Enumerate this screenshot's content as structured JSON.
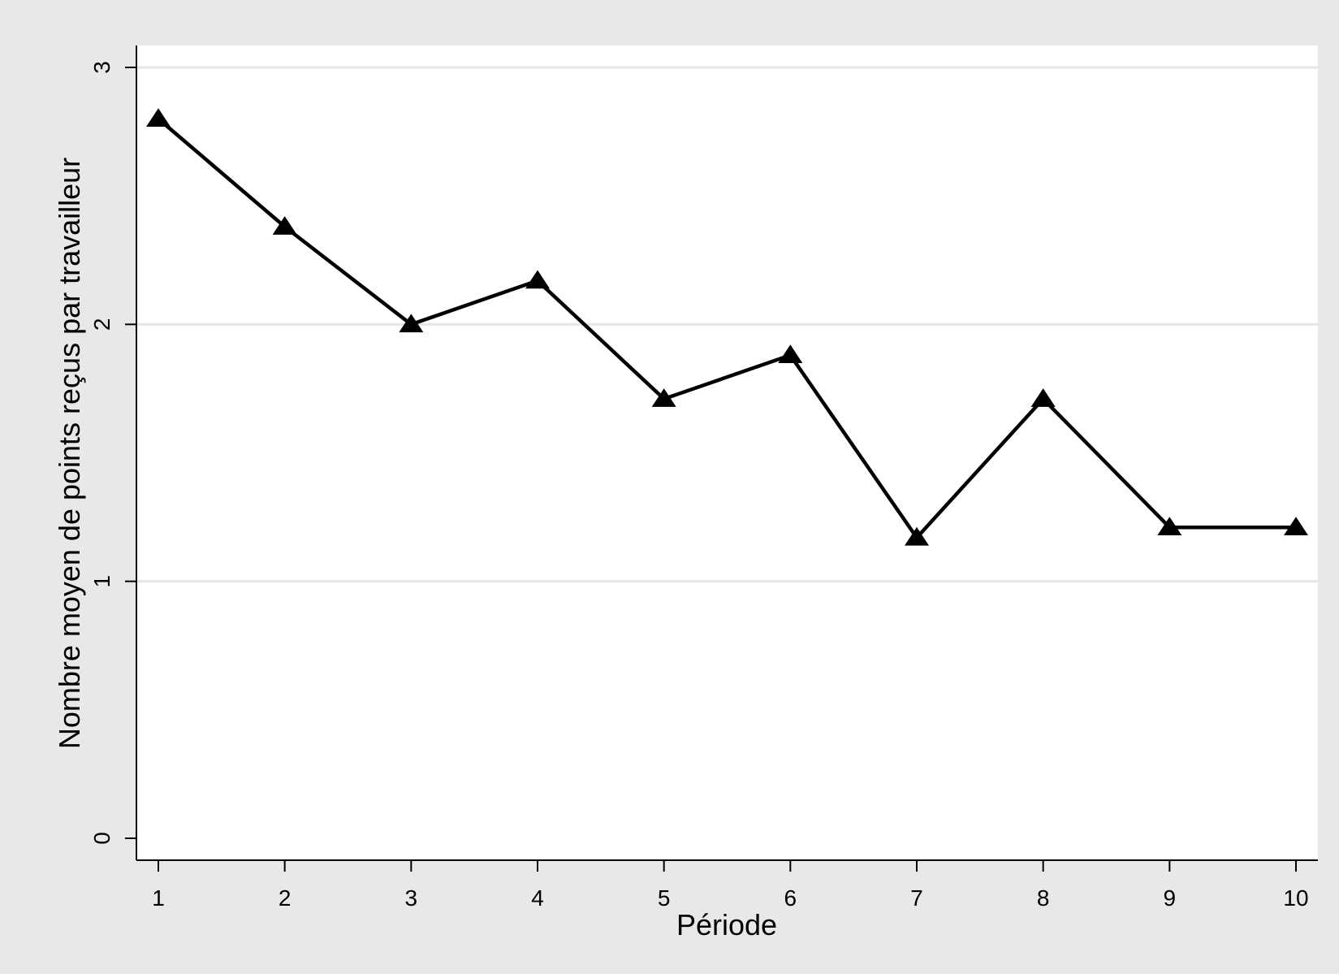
{
  "chart_data": {
    "type": "line",
    "title": "",
    "xlabel": "Période",
    "ylabel": "Nombre moyen de points reçus par travailleur",
    "x": [
      1,
      2,
      3,
      4,
      5,
      6,
      7,
      8,
      9,
      10
    ],
    "series": [
      {
        "values": [
          2.8,
          2.38,
          2.0,
          2.17,
          1.71,
          1.88,
          1.17,
          1.71,
          1.21,
          1.21
        ],
        "marker": "triangle",
        "color": "#000000"
      }
    ],
    "xticks": [
      "1",
      "2",
      "3",
      "4",
      "5",
      "6",
      "7",
      "8",
      "9",
      "10"
    ],
    "yticks": [
      "0",
      "1",
      "2",
      "3"
    ],
    "xlim": [
      1,
      10
    ],
    "ylim": [
      0,
      3
    ],
    "grid": true,
    "legend": "none"
  },
  "colors": {
    "outer_background": "#e8e8e8",
    "plot_background": "#ffffff",
    "gridline": "#e6e6e6",
    "line": "#000000"
  }
}
